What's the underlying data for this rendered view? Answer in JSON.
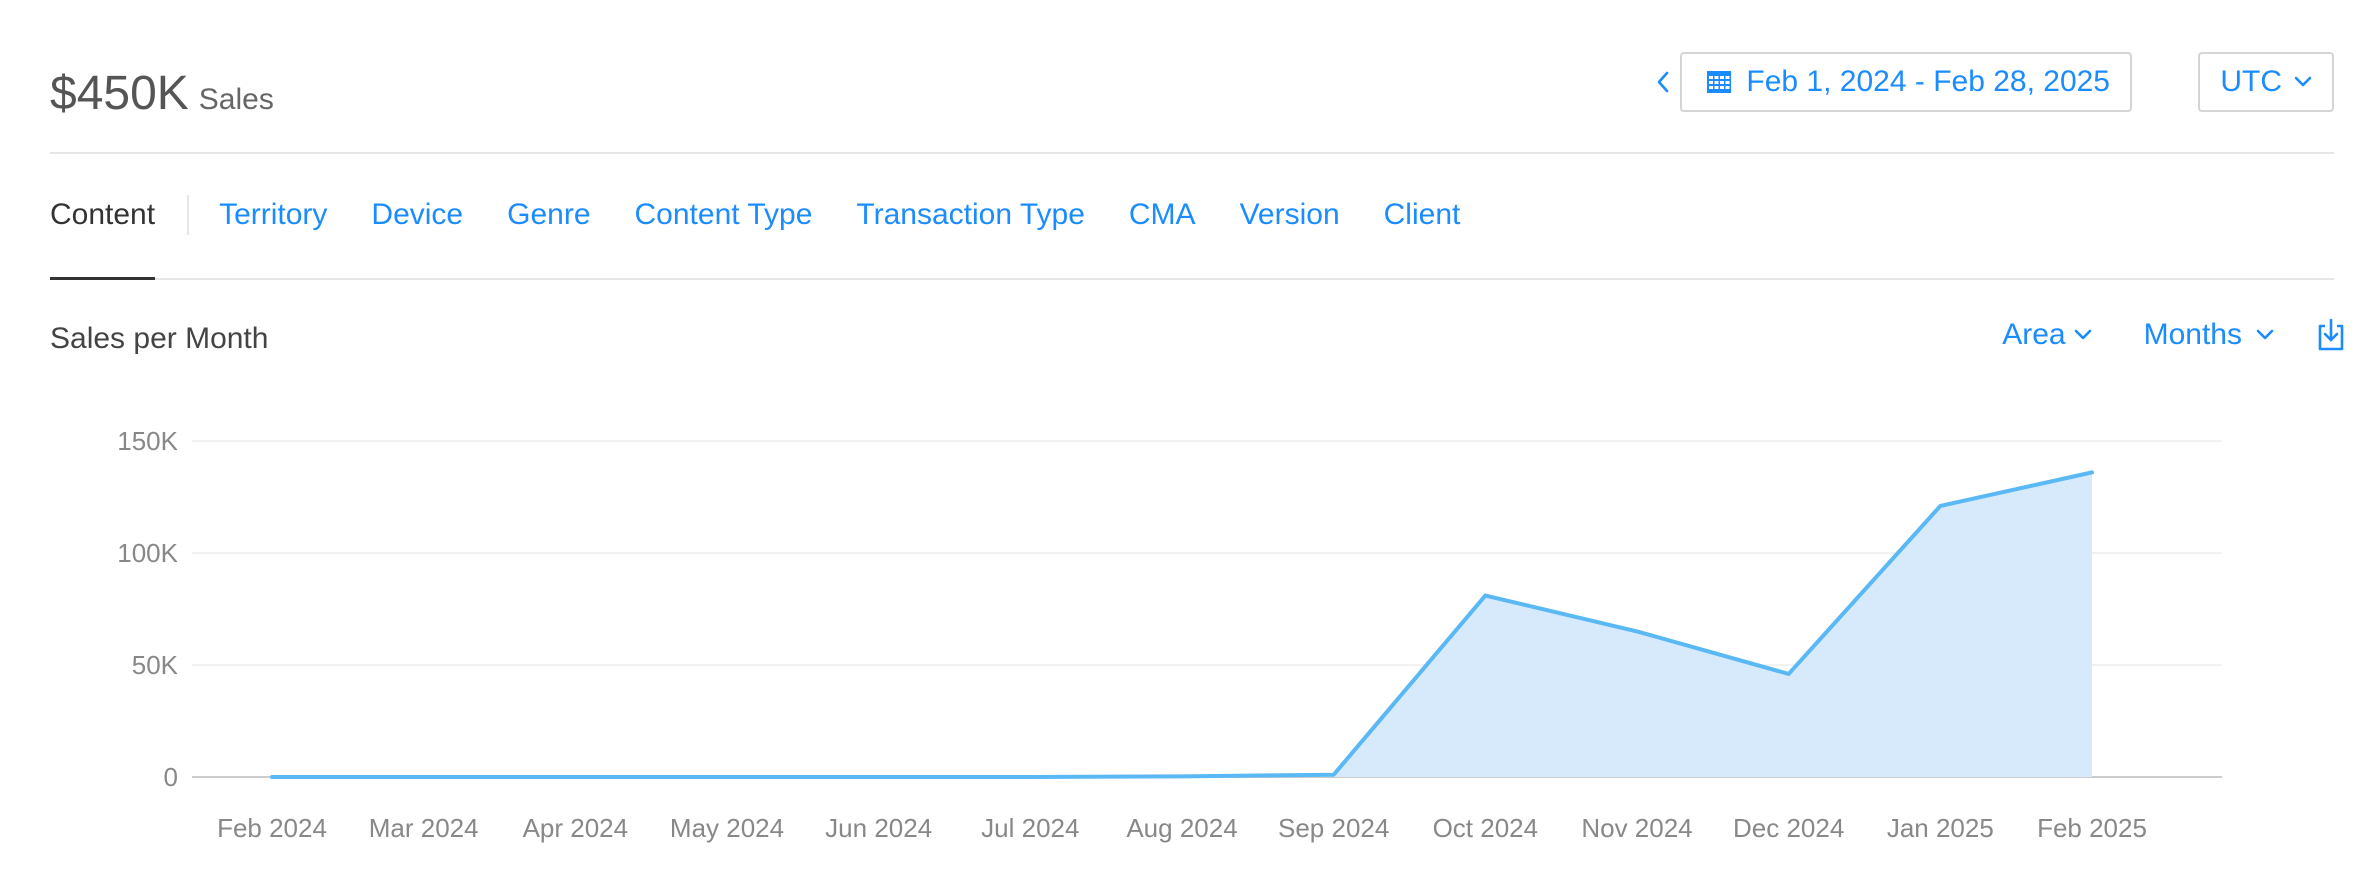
{
  "summary": {
    "amount": "$450K",
    "label": "Sales"
  },
  "date_range": {
    "label": "Feb 1, 2024 - Feb 28, 2025"
  },
  "timezone": {
    "label": "UTC"
  },
  "tabs": [
    {
      "label": "Content",
      "active": true
    },
    {
      "label": "Territory"
    },
    {
      "label": "Device"
    },
    {
      "label": "Genre"
    },
    {
      "label": "Content Type"
    },
    {
      "label": "Transaction Type"
    },
    {
      "label": "CMA"
    },
    {
      "label": "Version"
    },
    {
      "label": "Client"
    }
  ],
  "chart_header": {
    "title": "Sales per Month",
    "chart_type_label": "Area",
    "period_label": "Months"
  },
  "colors": {
    "accent": "#1a8cff",
    "series_line": "#5ab8f5",
    "series_fill": "#d6eafc"
  },
  "icons": {
    "prev": "chevron-left-icon",
    "calendar": "calendar-icon",
    "dropdown": "chevron-down-icon",
    "download": "download-icon"
  },
  "chart_data": {
    "type": "area",
    "categories": [
      "Feb 2024",
      "Mar 2024",
      "Apr 2024",
      "May 2024",
      "Jun 2024",
      "Jul 2024",
      "Aug 2024",
      "Sep 2024",
      "Oct 2024",
      "Nov 2024",
      "Dec 2024",
      "Jan 2025",
      "Feb 2025"
    ],
    "values": [
      0,
      0,
      0,
      0,
      0,
      0,
      300,
      1000,
      81000,
      65000,
      46000,
      121000,
      136000
    ],
    "y_ticks": [
      {
        "value": 0,
        "label": "0"
      },
      {
        "value": 50000,
        "label": "50K"
      },
      {
        "value": 100000,
        "label": "100K"
      },
      {
        "value": 150000,
        "label": "150K"
      }
    ],
    "ylim": [
      0,
      150000
    ],
    "grid": true,
    "legend": false
  }
}
